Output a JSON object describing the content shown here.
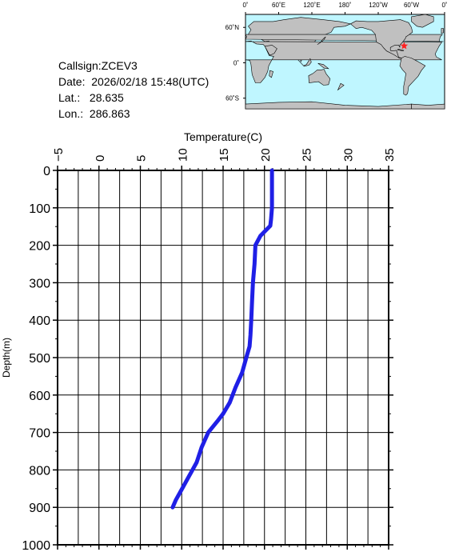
{
  "info": {
    "callsign": "Callsign:ZCEV3",
    "date": "Date:  2026/02/18 15:48(UTC)",
    "lat": "Lat.:   28.635",
    "lon": "Lon.:  286.863"
  },
  "map": {
    "lon_ticks": [
      "0˚",
      "60˚E",
      "120˚E",
      "180˚",
      "120˚W",
      "60˚W",
      "0˚"
    ],
    "lat_ticks": [
      "60˚N",
      "0˚",
      "60˚S"
    ],
    "marker_lat": 28.635,
    "marker_lon": 286.863,
    "ocean_color": "#bff6ff",
    "land_color": "#c0c0c0",
    "marker_color": "#ff2020"
  },
  "chart_data": {
    "type": "line",
    "title": "",
    "xlabel": "Temperature(C)",
    "ylabel": "Depth(m)",
    "xlim": [
      -5,
      35
    ],
    "ylim": [
      0,
      1000
    ],
    "y_inverted": true,
    "x_ticks": [
      -5,
      0,
      5,
      10,
      15,
      20,
      25,
      30,
      35
    ],
    "y_ticks": [
      0,
      100,
      200,
      300,
      400,
      500,
      600,
      700,
      800,
      900,
      1000
    ],
    "grid": true,
    "line_color": "#1f1fe6",
    "series": [
      {
        "x": [
          20.9,
          20.9,
          20.9,
          20.8,
          20.7,
          19.5,
          18.9,
          18.8,
          18.6,
          18.5,
          18.4,
          18.3,
          18.2,
          17.8,
          17.3,
          16.5,
          15.8,
          15.0,
          14.3,
          13.2,
          12.8,
          12.4,
          11.8,
          11.3,
          10.8,
          10.3,
          9.8,
          9.3,
          8.9
        ],
        "y": [
          0,
          50,
          100,
          130,
          148,
          175,
          200,
          250,
          300,
          350,
          400,
          440,
          470,
          500,
          540,
          580,
          620,
          650,
          670,
          700,
          720,
          740,
          780,
          800,
          820,
          840,
          860,
          880,
          900
        ]
      }
    ]
  }
}
